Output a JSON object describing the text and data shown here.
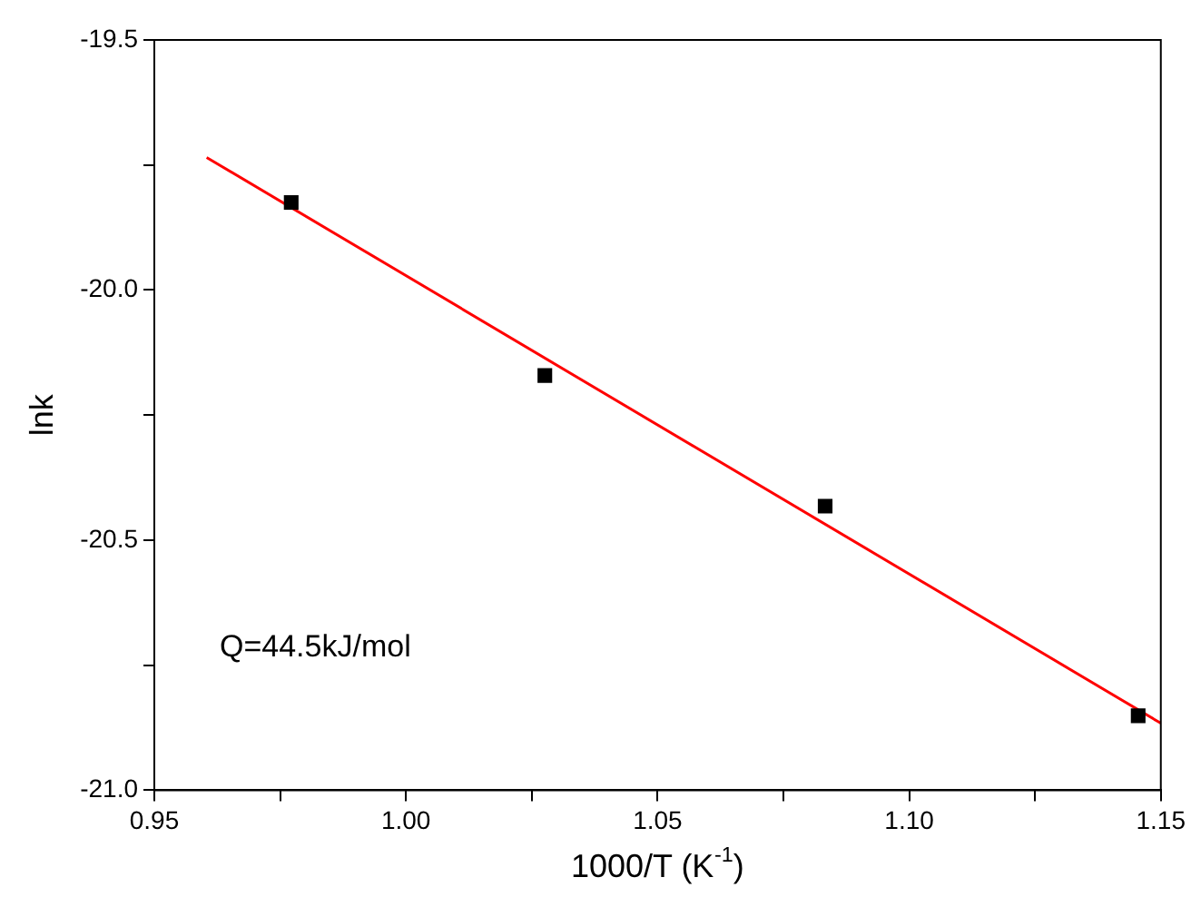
{
  "chart_data": {
    "type": "scatter",
    "xlabel": "1000/T (K$^{-1}$)",
    "ylabel": "lnk",
    "x": [
      0.9772,
      1.0276,
      1.0833,
      1.1455
    ],
    "series": [
      {
        "color": "#000000",
        "marker": "square",
        "values": [
          -19.825,
          -20.171,
          -20.432,
          -20.851
        ]
      },
      {
        "type": "line",
        "color": "#ff0000",
        "marker": "none",
        "x": [
          0.9604,
          1.15
        ],
        "values": [
          -19.735,
          -20.866
        ]
      }
    ],
    "xlim": [
      0.95,
      1.15
    ],
    "xticks": [
      {
        "value": 0.95,
        "label": "0.95"
      },
      {
        "value": 0.975,
        "label": null
      },
      {
        "value": 1.0,
        "label": "1.00"
      },
      {
        "value": 1.025,
        "label": null
      },
      {
        "value": 1.05,
        "label": "1.05"
      },
      {
        "value": 1.075,
        "label": null
      },
      {
        "value": 1.1,
        "label": "1.10"
      },
      {
        "value": 1.125,
        "label": null
      },
      {
        "value": 1.15,
        "label": "1.15"
      }
    ],
    "ylim": [
      -21.0,
      -19.5
    ],
    "yticks": [
      {
        "value": -21.0,
        "label": "-21.0"
      },
      {
        "value": -20.75,
        "label": null
      },
      {
        "value": -20.5,
        "label": "-20.5"
      },
      {
        "value": -20.25,
        "label": null
      },
      {
        "value": -20.0,
        "label": "-20.0"
      },
      {
        "value": -19.75,
        "label": null
      },
      {
        "value": -19.5,
        "label": "-19.5"
      }
    ],
    "annotations": [
      "Q=44.5kJ/mol"
    ],
    "grid": false,
    "legend": false
  }
}
